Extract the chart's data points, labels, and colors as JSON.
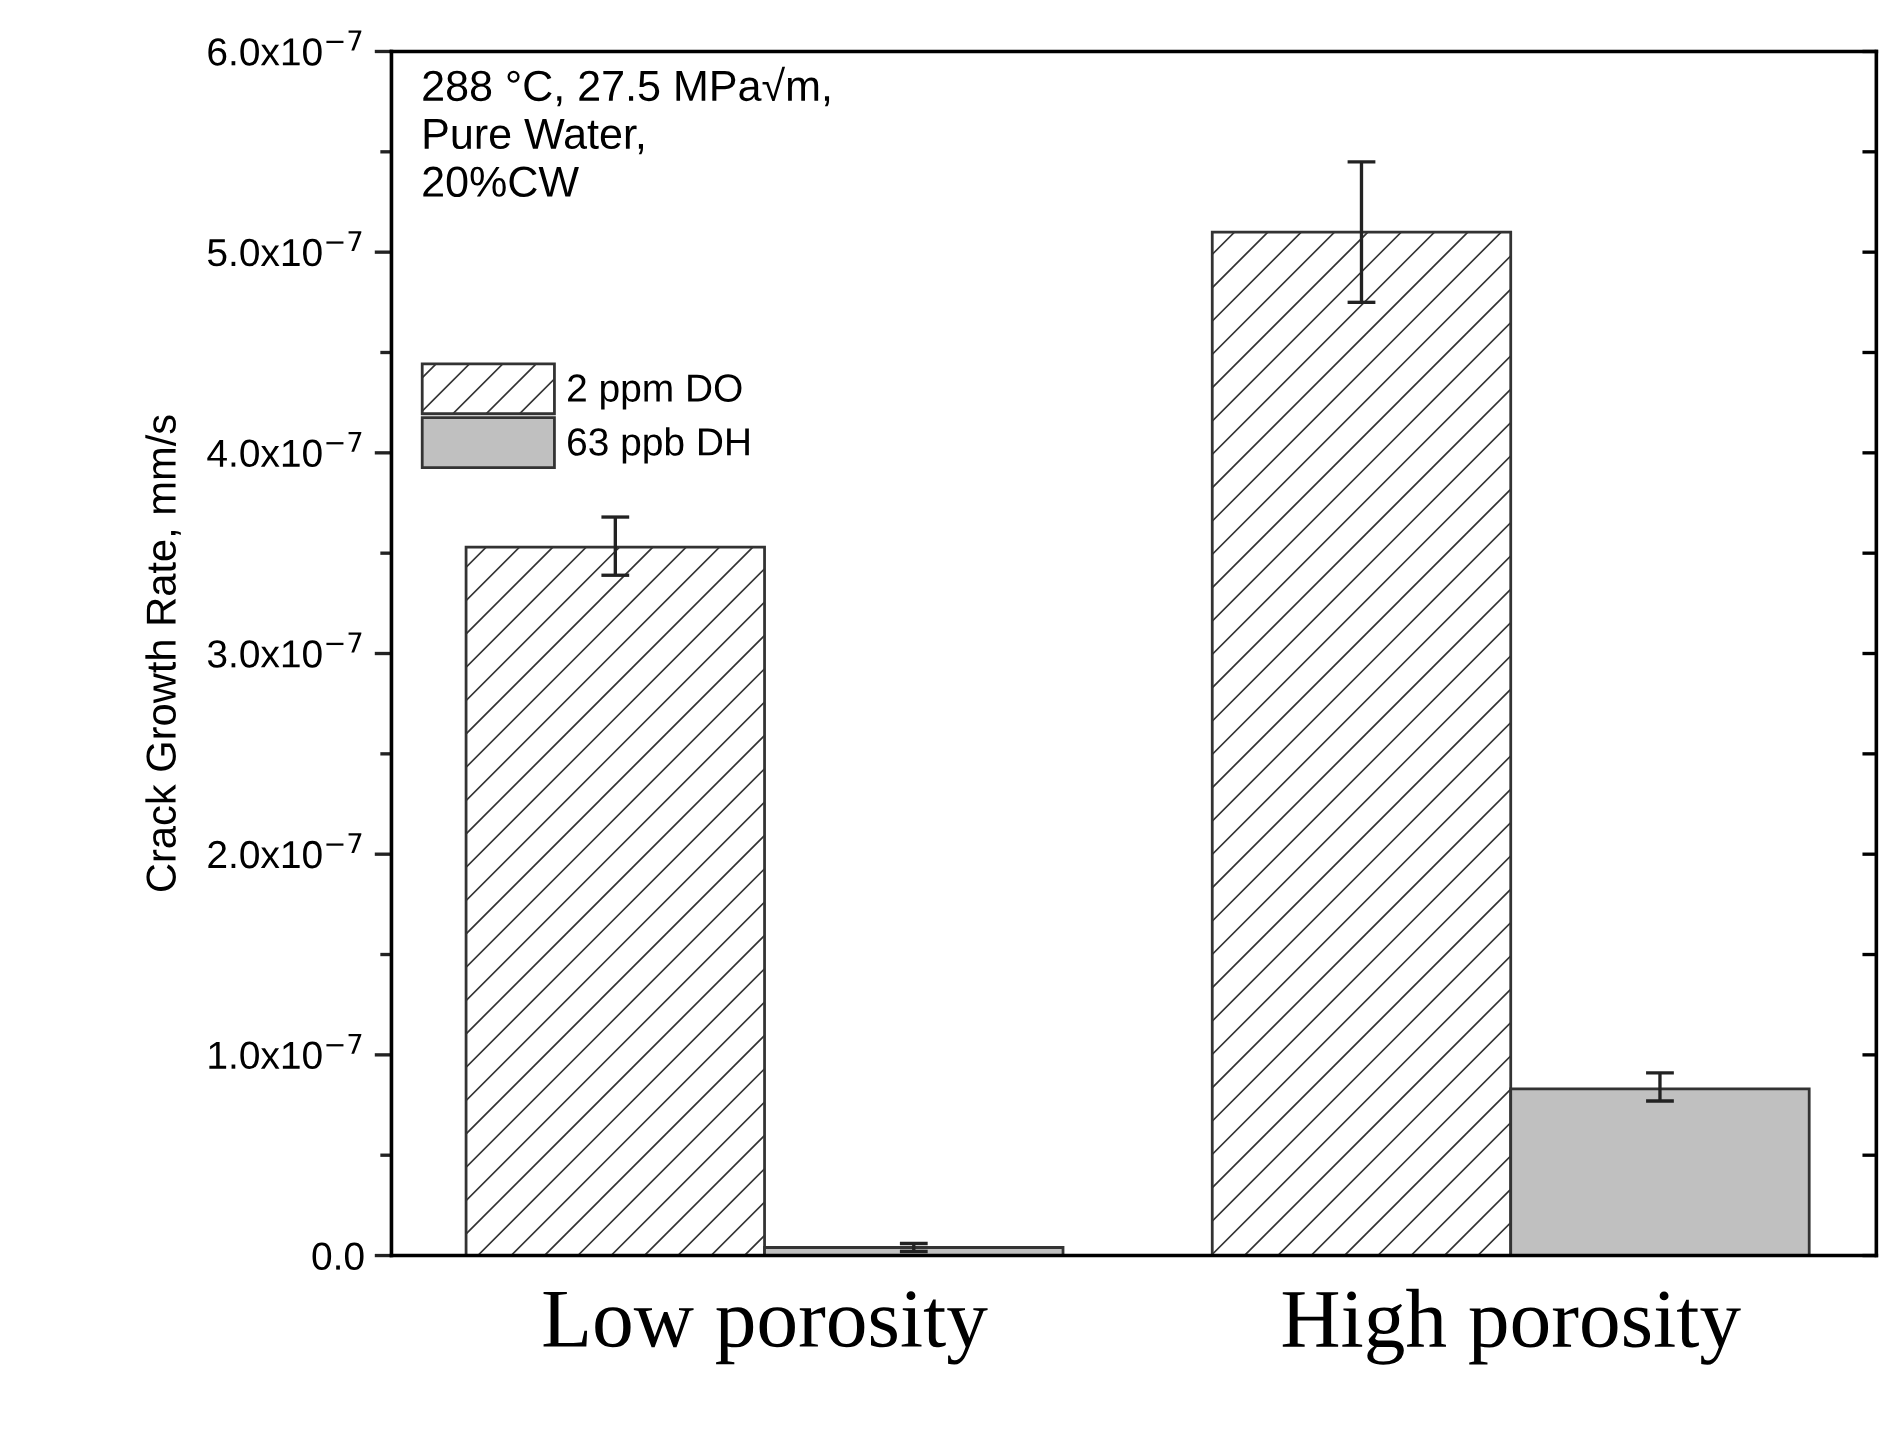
{
  "chart_data": {
    "type": "bar",
    "ylabel": "Crack Growth Rate, mm/s",
    "categories": [
      "Low porosity",
      "High porosity"
    ],
    "series": [
      {
        "name": "2 ppm DO",
        "color": "#333333",
        "values": [
          3.53e-07,
          5.1e-07
        ],
        "errors": [
          [
            3.39e-07,
            3.68e-07
          ],
          [
            4.75e-07,
            5.45e-07
          ]
        ]
      },
      {
        "name": "63 ppb DH",
        "color": "#c0c0c0",
        "values": [
          4e-09,
          8.3e-08
        ],
        "errors": [
          [
            2e-09,
            6e-09
          ],
          [
            7.7e-08,
            9.1e-08
          ]
        ]
      }
    ],
    "ylim": [
      0,
      6e-07
    ],
    "yticks": [
      {
        "value": 0,
        "label": "0.0"
      },
      {
        "value": 5e-08,
        "label": null
      },
      {
        "value": 1e-07,
        "label": "1.0x10$^{−7}$"
      },
      {
        "value": 1.5e-07,
        "label": null
      },
      {
        "value": 2e-07,
        "label": "2.0x10$^{−7}$"
      },
      {
        "value": 2.5e-07,
        "label": null
      },
      {
        "value": 3e-07,
        "label": "3.0x10$^{−7}$"
      },
      {
        "value": 3.5e-07,
        "label": null
      },
      {
        "value": 4e-07,
        "label": "4.0x10$^{−7}$"
      },
      {
        "value": 4.5e-07,
        "label": null
      },
      {
        "value": 5e-07,
        "label": "5.0x10$^{−7}$"
      },
      {
        "value": 5.5e-07,
        "label": null
      },
      {
        "value": 6e-07,
        "label": "6.0x10$^{−7}$"
      }
    ],
    "annotations": [
      "288 °C, 27.5 MPa√m,\nPure Water,\n20%CW"
    ],
    "legend": "top left",
    "grid": false
  }
}
